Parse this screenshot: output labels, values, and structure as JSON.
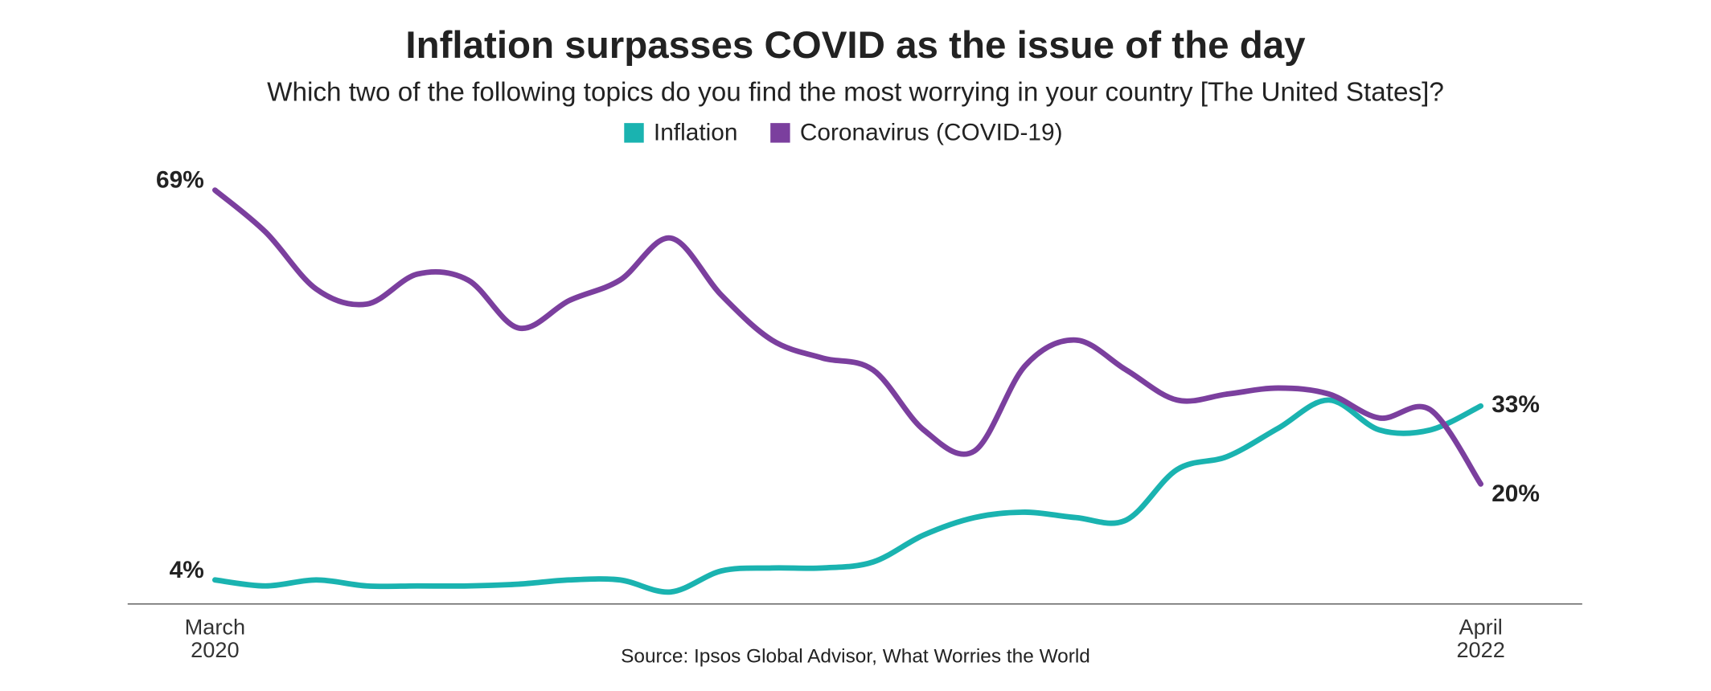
{
  "chart_data": {
    "type": "line",
    "title": "Inflation surpasses COVID as the issue of the day",
    "subtitle": "Which two of the following topics do you find the most worrying in your country [The United States]?",
    "source": "Source: Ipsos Global Advisor, What Worries the World",
    "categories": [
      "March 2020",
      null,
      null,
      null,
      null,
      null,
      null,
      null,
      null,
      null,
      null,
      null,
      null,
      null,
      null,
      null,
      null,
      null,
      null,
      null,
      null,
      null,
      null,
      null,
      null,
      "April 2022"
    ],
    "ylim": [
      0,
      70
    ],
    "series": [
      {
        "name": "Inflation",
        "color": "#1ab3b0",
        "values": [
          4,
          3,
          4,
          3,
          3,
          3,
          3.3,
          4,
          4,
          2,
          5.5,
          6,
          6,
          7,
          11.5,
          14.4,
          15.3,
          14.4,
          14,
          22.4,
          24.6,
          29.3,
          34,
          29,
          29,
          33
        ],
        "value_labels": [
          "4%",
          null,
          null,
          null,
          null,
          null,
          null,
          null,
          null,
          null,
          null,
          null,
          null,
          null,
          null,
          null,
          null,
          null,
          null,
          null,
          null,
          null,
          null,
          null,
          null,
          "33%"
        ]
      },
      {
        "name": "Coronavirus (COVID-19)",
        "color": "#7b3f9e",
        "values": [
          69,
          62,
          52.5,
          50,
          55,
          54,
          46,
          50.6,
          54,
          61,
          51.5,
          44,
          41,
          39,
          29,
          25.5,
          39.7,
          44,
          39,
          34,
          35,
          36,
          35,
          31,
          32.4,
          20
        ],
        "value_labels": [
          "69%",
          null,
          null,
          null,
          null,
          null,
          null,
          null,
          null,
          null,
          null,
          null,
          null,
          null,
          null,
          null,
          null,
          null,
          null,
          null,
          null,
          null,
          null,
          null,
          null,
          "20%"
        ]
      }
    ]
  }
}
